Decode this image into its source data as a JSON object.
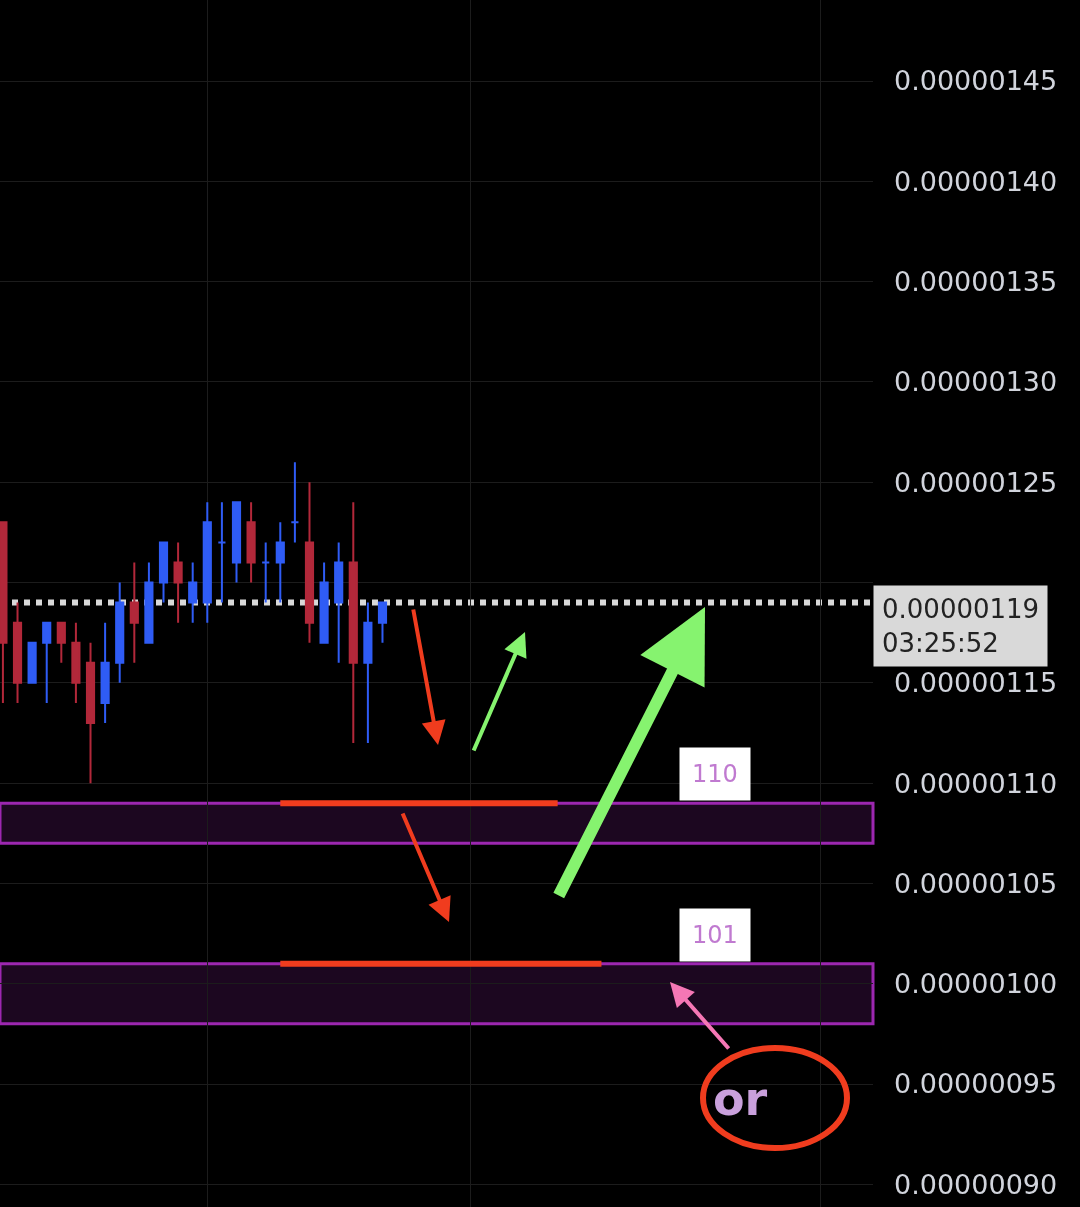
{
  "chart_data": {
    "type": "candlestick",
    "categories": [
      null,
      null,
      null,
      null,
      null,
      null,
      null,
      null,
      null,
      null,
      null,
      null,
      null,
      null,
      null,
      null,
      null,
      null,
      null,
      null,
      null,
      null,
      null,
      null,
      null,
      null,
      null,
      null,
      null,
      null,
      null,
      null,
      null,
      null,
      null,
      null,
      null,
      null,
      null,
      null,
      null,
      null,
      null,
      null,
      null,
      null,
      null,
      null,
      null,
      null,
      null,
      null,
      null,
      null,
      null,
      null,
      null,
      null,
      null,
      null
    ],
    "ohlc": [
      [
        1.23e-06,
        1.23e-06,
        1.14e-06,
        1.17e-06
      ],
      [
        1.18e-06,
        1.19e-06,
        1.14e-06,
        1.15e-06
      ],
      [
        1.15e-06,
        1.17e-06,
        1.15e-06,
        1.17e-06
      ],
      [
        1.17e-06,
        1.18e-06,
        1.14e-06,
        1.18e-06
      ],
      [
        1.18e-06,
        1.18e-06,
        1.16e-06,
        1.17e-06
      ],
      [
        1.17e-06,
        1.18e-06,
        1.14e-06,
        1.15e-06
      ],
      [
        1.16e-06,
        1.17e-06,
        1.1e-06,
        1.13e-06
      ],
      [
        1.14e-06,
        1.18e-06,
        1.13e-06,
        1.16e-06
      ],
      [
        1.16e-06,
        1.2e-06,
        1.15e-06,
        1.19e-06
      ],
      [
        1.19e-06,
        1.21e-06,
        1.16e-06,
        1.18e-06
      ],
      [
        1.17e-06,
        1.21e-06,
        1.17e-06,
        1.2e-06
      ],
      [
        1.2e-06,
        1.22e-06,
        1.19e-06,
        1.22e-06
      ],
      [
        1.21e-06,
        1.22e-06,
        1.18e-06,
        1.2e-06
      ],
      [
        1.19e-06,
        1.21e-06,
        1.18e-06,
        1.2e-06
      ],
      [
        1.19e-06,
        1.24e-06,
        1.18e-06,
        1.23e-06
      ],
      [
        1.22e-06,
        1.24e-06,
        1.19e-06,
        1.22e-06
      ],
      [
        1.21e-06,
        1.24e-06,
        1.2e-06,
        1.24e-06
      ],
      [
        1.23e-06,
        1.24e-06,
        1.2e-06,
        1.21e-06
      ],
      [
        1.21e-06,
        1.22e-06,
        1.19e-06,
        1.21e-06
      ],
      [
        1.21e-06,
        1.23e-06,
        1.19e-06,
        1.22e-06
      ],
      [
        1.23e-06,
        1.26e-06,
        1.22e-06,
        1.23e-06
      ],
      [
        1.22e-06,
        1.25e-06,
        1.17e-06,
        1.18e-06
      ],
      [
        1.17e-06,
        1.21e-06,
        1.17e-06,
        1.2e-06
      ],
      [
        1.19e-06,
        1.22e-06,
        1.16e-06,
        1.21e-06
      ],
      [
        1.21e-06,
        1.24e-06,
        1.12e-06,
        1.16e-06
      ],
      [
        1.16e-06,
        1.19e-06,
        1.12e-06,
        1.18e-06
      ],
      [
        1.18e-06,
        1.19e-06,
        1.17e-06,
        1.19e-06
      ],
      null,
      null,
      null,
      null,
      null,
      null,
      null,
      null,
      null,
      null,
      null,
      null,
      null,
      null,
      null,
      null,
      null,
      null,
      null,
      null,
      null,
      null,
      null,
      null,
      null,
      null,
      null,
      null,
      null,
      null,
      null,
      null,
      null
    ],
    "colors": [
      "#b2283a",
      "#b2283a",
      "#2f5cf5",
      "#2f5cf5",
      "#b2283a",
      "#b2283a",
      "#b2283a",
      "#2f5cf5",
      "#2f5cf5",
      "#b2283a",
      "#2f5cf5",
      "#2f5cf5",
      "#b2283a",
      "#2f5cf5",
      "#2f5cf5",
      "#2f5cf5",
      "#2f5cf5",
      "#b2283a",
      "#2f5cf5",
      "#2f5cf5",
      "#2f5cf5",
      "#b2283a",
      "#2f5cf5",
      "#2f5cf5",
      "#b2283a",
      "#2f5cf5",
      "#2f5cf5",
      null,
      null,
      null,
      null,
      null,
      null,
      null,
      null,
      null,
      null,
      null,
      null,
      null,
      null,
      null,
      null,
      null,
      null,
      null,
      null,
      null,
      null,
      null,
      null,
      null,
      null,
      null,
      null,
      null,
      null,
      null,
      null,
      null
    ],
    "series": [
      {
        "type": "line",
        "color": "#f03c1e",
        "values": [
          null,
          null,
          null,
          null,
          null,
          null,
          null,
          null,
          null,
          null,
          null,
          null,
          null,
          null,
          null,
          null,
          null,
          null,
          null,
          1.09e-06,
          1.09e-06,
          1.09e-06,
          1.09e-06,
          1.09e-06,
          1.09e-06,
          1.09e-06,
          1.09e-06,
          1.09e-06,
          1.09e-06,
          1.09e-06,
          1.09e-06,
          1.09e-06,
          1.09e-06,
          1.09e-06,
          1.09e-06,
          1.09e-06,
          1.09e-06,
          1.09e-06,
          1.09e-06,
          null,
          null,
          null,
          null,
          null,
          null,
          null,
          null,
          null,
          null,
          null,
          null,
          null,
          null,
          null,
          null,
          null,
          null,
          null,
          null,
          null
        ]
      },
      {
        "type": "line",
        "color": "#f03c1e",
        "values": [
          null,
          null,
          null,
          null,
          null,
          null,
          null,
          null,
          null,
          null,
          null,
          null,
          null,
          null,
          null,
          null,
          null,
          null,
          null,
          1.01e-06,
          1.01e-06,
          1.01e-06,
          1.01e-06,
          1.01e-06,
          1.01e-06,
          1.01e-06,
          1.01e-06,
          1.01e-06,
          1.01e-06,
          1.01e-06,
          1.01e-06,
          1.01e-06,
          1.01e-06,
          1.01e-06,
          1.01e-06,
          1.01e-06,
          1.01e-06,
          1.01e-06,
          1.01e-06,
          1.01e-06,
          1.01e-06,
          1.01e-06,
          null,
          null,
          null,
          null,
          null,
          null,
          null,
          null,
          null,
          null,
          null,
          null,
          null,
          null,
          null,
          null,
          null,
          null
        ]
      }
    ],
    "ylim": [
      8.887e-07,
      1.4904e-06
    ],
    "yticks": [
      {
        "value": 9e-07,
        "label": "0.00000090"
      },
      {
        "value": 9.5e-07,
        "label": "0.00000095"
      },
      {
        "value": 1e-06,
        "label": "0.00000100"
      },
      {
        "value": 1.05e-06,
        "label": "0.00000105"
      },
      {
        "value": 1.1e-06,
        "label": "0.00000110"
      },
      {
        "value": 1.15e-06,
        "label": "0.00000115"
      },
      {
        "value": 1.2e-06,
        "label": null
      },
      {
        "value": 1.25e-06,
        "label": "0.00000125"
      },
      {
        "value": 1.3e-06,
        "label": "0.00000130"
      },
      {
        "value": 1.35e-06,
        "label": "0.00000135"
      },
      {
        "value": 1.4e-06,
        "label": "0.00000140"
      },
      {
        "value": 1.45e-06,
        "label": "0.00000145"
      }
    ],
    "ref_lines": [
      {
        "axis": "y",
        "value": 1.19e-06,
        "label": "0.00000119\n03:25:52",
        "color": "#d9d9d9",
        "line_style": "dotted"
      }
    ],
    "bands": [
      {
        "axis": "y",
        "from": 1.07e-06,
        "to": 1.09e-06,
        "label": "110",
        "color": "#9c27b0"
      },
      {
        "axis": "y",
        "from": 9.8e-07,
        "to": 1.01e-06,
        "label": "101",
        "color": "#9c27b0"
      }
    ],
    "annotations": [
      "or"
    ],
    "grid": true,
    "tick_labels": "y"
  }
}
